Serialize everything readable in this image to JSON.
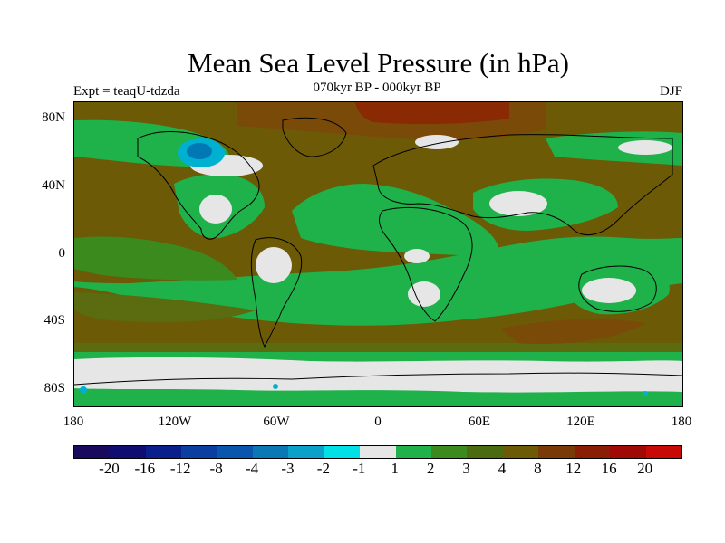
{
  "header": {
    "title": "Mean Sea Level Pressure (in hPa)",
    "subtitle": "070kyr BP - 000kyr BP",
    "experiment": "Expt = teaqU-tdzda",
    "season": "DJF"
  },
  "map": {
    "y_labels": [
      "80N",
      "40N",
      "0",
      "40S",
      "80S"
    ],
    "x_labels": [
      "180",
      "120W",
      "60W",
      "0",
      "60E",
      "120E",
      "180"
    ],
    "colors": {
      "ocean_main": "#6c5a06",
      "land_green": "#1fb24a",
      "neutral": "#e6e6e6",
      "mid_green": "#3b8a1e",
      "olive": "#5a6b10",
      "brown": "#7a4a08",
      "rust": "#8a2a04",
      "blue_light": "#00b0d0",
      "blue_mid": "#0078b4",
      "coast": "#000000"
    }
  },
  "colorbar": {
    "labels": [
      "-20",
      "-16",
      "-12",
      "-8",
      "-4",
      "-3",
      "-2",
      "-1",
      "1",
      "2",
      "3",
      "4",
      "8",
      "12",
      "16",
      "20"
    ],
    "colors": [
      "#1a0a5e",
      "#0f0c72",
      "#0a1f8c",
      "#0a3ea0",
      "#0a56ac",
      "#0a78b4",
      "#0aa0c8",
      "#00e0e6",
      "#e6e6e6",
      "#1fb24a",
      "#3b8a1e",
      "#4a6b10",
      "#6c5a06",
      "#7a3a08",
      "#8a1e04",
      "#a00a06",
      "#c80a06"
    ]
  }
}
